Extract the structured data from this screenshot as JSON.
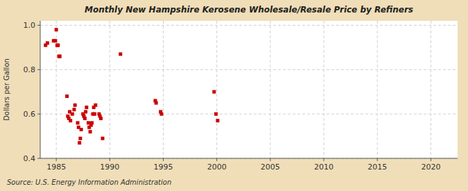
{
  "chart_data": {
    "type": "scatter",
    "title": "Monthly New Hampshire Kerosene Wholesale/Resale Price by Refiners",
    "ylabel": "Dollars per Gallon",
    "source": "Source: U.S. Energy Information Administration",
    "x": [
      1984.0,
      1984.17,
      1984.75,
      1984.92,
      1985.0,
      1985.08,
      1985.17,
      1985.25,
      1985.33,
      1986.0,
      1986.08,
      1986.17,
      1986.25,
      1986.33,
      1986.5,
      1986.67,
      1986.75,
      1987.0,
      1987.08,
      1987.17,
      1987.25,
      1987.33,
      1987.5,
      1987.58,
      1987.67,
      1987.75,
      1987.83,
      1988.0,
      1988.08,
      1988.17,
      1988.25,
      1988.33,
      1988.42,
      1988.5,
      1988.58,
      1988.67,
      1989.0,
      1989.08,
      1989.17,
      1989.33,
      1991.0,
      1994.25,
      1994.33,
      1994.75,
      1994.83,
      1999.75,
      1999.92,
      2000.08
    ],
    "values": [
      0.91,
      0.92,
      0.93,
      0.93,
      0.98,
      0.91,
      0.91,
      0.86,
      0.86,
      0.68,
      0.59,
      0.58,
      0.61,
      0.57,
      0.6,
      0.62,
      0.64,
      0.56,
      0.54,
      0.47,
      0.49,
      0.53,
      0.6,
      0.59,
      0.58,
      0.61,
      0.63,
      0.56,
      0.54,
      0.52,
      0.55,
      0.56,
      0.6,
      0.63,
      0.6,
      0.64,
      0.6,
      0.59,
      0.58,
      0.49,
      0.87,
      0.66,
      0.65,
      0.61,
      0.6,
      0.7,
      0.6,
      0.57
    ],
    "color": "#cc0000",
    "marker": "square",
    "xlim": [
      1983.5,
      2022.5
    ],
    "ylim": [
      0.4,
      1.02
    ],
    "xticks": [
      1985,
      1990,
      1995,
      2000,
      2005,
      2010,
      2015,
      2020
    ],
    "yticks": [
      0.4,
      0.6,
      0.8,
      {
        "value": 1.0,
        "label": "1.0"
      }
    ],
    "grid": true
  }
}
